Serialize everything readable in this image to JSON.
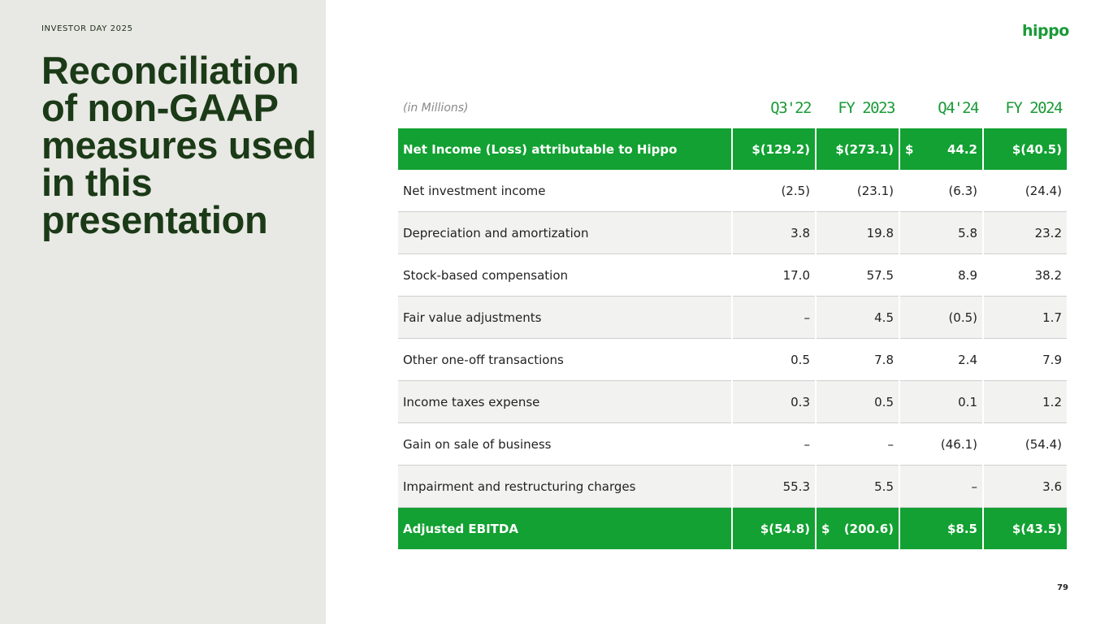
{
  "slide": {
    "eyebrow": "INVESTOR DAY 2025",
    "title": "Reconciliation of non-GAAP measures used in this presentation",
    "logo": "hippo",
    "page_number": "79"
  },
  "table": {
    "unit_label": "(in Millions)",
    "columns": [
      "Q3'22",
      "FY 2023",
      "Q4'24",
      "FY 2024"
    ],
    "net_income": {
      "label": "Net Income (Loss) attributable to Hippo",
      "values": [
        "$(129.2)",
        "$(273.1)",
        "44.2",
        "$(40.5)"
      ],
      "q424_currency": "$"
    },
    "rows": [
      {
        "label": "Net investment income",
        "values": [
          "(2.5)",
          "(23.1)",
          "(6.3)",
          "(24.4)"
        ]
      },
      {
        "label": "Depreciation and amortization",
        "values": [
          "3.8",
          "19.8",
          "5.8",
          "23.2"
        ]
      },
      {
        "label": "Stock-based compensation",
        "values": [
          "17.0",
          "57.5",
          "8.9",
          "38.2"
        ]
      },
      {
        "label": "Fair value adjustments",
        "values": [
          "–",
          "4.5",
          "(0.5)",
          "1.7"
        ]
      },
      {
        "label": "Other one-off transactions",
        "values": [
          "0.5",
          "7.8",
          "2.4",
          "7.9"
        ]
      },
      {
        "label": "Income taxes expense",
        "values": [
          "0.3",
          "0.5",
          "0.1",
          "1.2"
        ]
      },
      {
        "label": "Gain on sale of business",
        "values": [
          "–",
          "–",
          "(46.1)",
          "(54.4)"
        ]
      },
      {
        "label": "Impairment and restructuring charges",
        "values": [
          "55.3",
          "5.5",
          "–",
          "3.6"
        ]
      }
    ],
    "adjusted_ebitda": {
      "label": "Adjusted EBITDA",
      "values": [
        "$(54.8)",
        "(200.6)",
        "$8.5",
        "$(43.5)"
      ],
      "fy2023_currency": "$"
    }
  },
  "colors": {
    "accent_green": "#12a132",
    "title_green": "#1b3a17",
    "panel_gray": "#e8e8e4"
  }
}
